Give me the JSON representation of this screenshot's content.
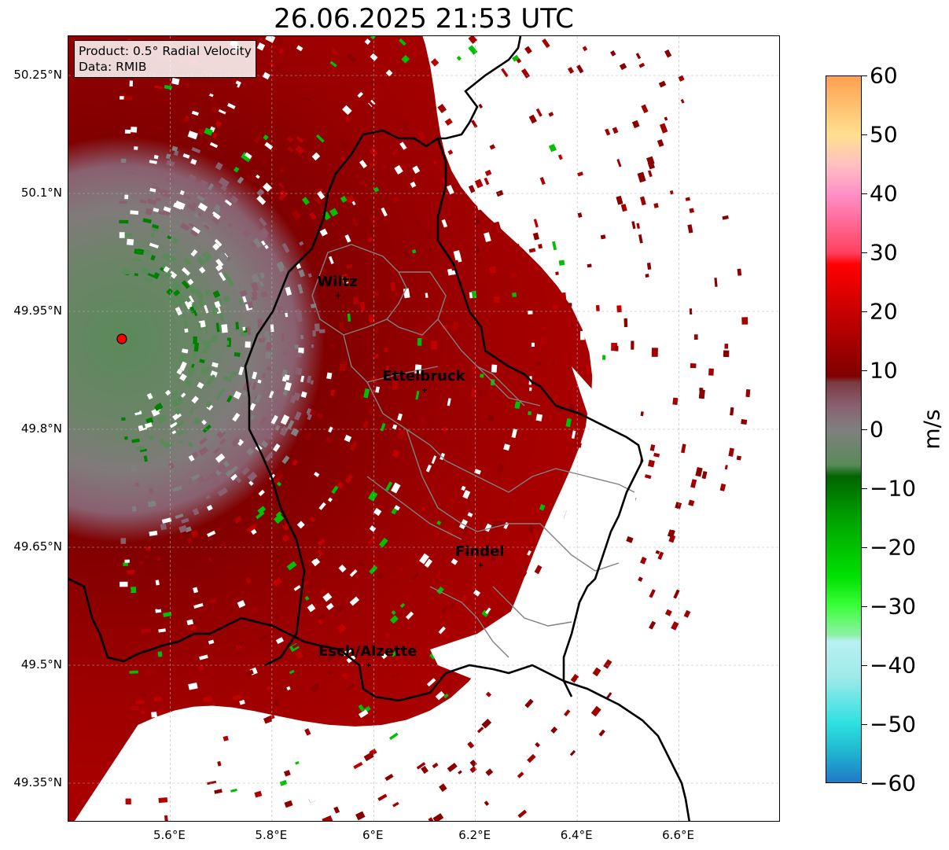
{
  "title": "26.06.2025 21:53 UTC",
  "info": {
    "product": "Product: 0.5° Radial Velocity",
    "data_source": "Data: RMIB"
  },
  "axes": {
    "lat_ticks": [
      "50.25°N",
      "50.1°N",
      "49.95°N",
      "49.8°N",
      "49.65°N",
      "49.5°N",
      "49.35°N"
    ],
    "lat_values": [
      50.25,
      50.1,
      49.95,
      49.8,
      49.65,
      49.5,
      49.35
    ],
    "lon_ticks": [
      "5.6°E",
      "5.8°E",
      "6°E",
      "6.2°E",
      "6.4°E",
      "6.6°E"
    ],
    "lon_values": [
      5.6,
      5.8,
      6.0,
      6.2,
      6.4,
      6.6
    ],
    "lon_range": [
      5.4,
      6.8
    ],
    "lat_range": [
      49.3,
      50.3
    ],
    "grid": true
  },
  "radar_site": {
    "lon": 5.505,
    "lat": 49.915,
    "marker_color": "#ff0000"
  },
  "cities": [
    {
      "name": "Wiltz",
      "lon": 5.93,
      "lat": 49.97
    },
    {
      "name": "Ettelbruck",
      "lon": 6.1,
      "lat": 49.85
    },
    {
      "name": "Findel",
      "lon": 6.21,
      "lat": 49.627
    },
    {
      "name": "Esch/Alzette",
      "lon": 5.99,
      "lat": 49.5
    }
  ],
  "colorbar": {
    "unit": "m/s",
    "min": -60,
    "max": 60,
    "tick_labels": [
      "60",
      "50",
      "40",
      "30",
      "20",
      "10",
      "0",
      "−10",
      "−20",
      "−30",
      "−40",
      "−50",
      "−60"
    ],
    "tick_values": [
      60,
      50,
      40,
      30,
      20,
      10,
      0,
      -10,
      -20,
      -30,
      -40,
      -50,
      -60
    ],
    "stops": [
      {
        "v": -60,
        "color": "#1f78c8"
      },
      {
        "v": -55,
        "color": "#1fb4d0"
      },
      {
        "v": -50,
        "color": "#2ee0e0"
      },
      {
        "v": -42,
        "color": "#a0eaea"
      },
      {
        "v": -36,
        "color": "#b8f0f0"
      },
      {
        "v": -35,
        "color": "#8ff0a8"
      },
      {
        "v": -30,
        "color": "#3aff3a"
      },
      {
        "v": -25,
        "color": "#00e000"
      },
      {
        "v": -15,
        "color": "#00a000"
      },
      {
        "v": -8,
        "color": "#006400"
      },
      {
        "v": -6,
        "color": "#5a8a5a"
      },
      {
        "v": 0,
        "color": "#808080"
      },
      {
        "v": 4,
        "color": "#8a6070"
      },
      {
        "v": 8,
        "color": "#7a3a40"
      },
      {
        "v": 9,
        "color": "#800000"
      },
      {
        "v": 20,
        "color": "#c80000"
      },
      {
        "v": 28,
        "color": "#ff0000"
      },
      {
        "v": 30,
        "color": "#ff4060"
      },
      {
        "v": 40,
        "color": "#ff90c8"
      },
      {
        "v": 45,
        "color": "#ffc0c0"
      },
      {
        "v": 50,
        "color": "#ffe090"
      },
      {
        "v": 60,
        "color": "#ffa050"
      }
    ]
  },
  "colors": {
    "border": "#000000",
    "canton": "#808080",
    "grid": "#b0b0b0",
    "radar_main": "#a00000",
    "radar_dark": "#800000",
    "radar_pink": "#8a6070",
    "radar_gray": "#808080",
    "radar_green_gray": "#5a8a5a"
  }
}
